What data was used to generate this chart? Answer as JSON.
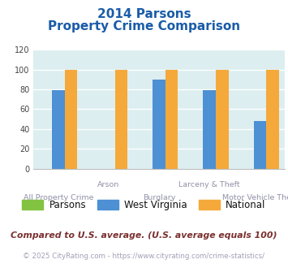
{
  "title_line1": "2014 Parsons",
  "title_line2": "Property Crime Comparison",
  "categories": [
    "All Property Crime",
    "Arson",
    "Burglary",
    "Larceny & Theft",
    "Motor Vehicle Theft"
  ],
  "x_labels_row1": [
    "",
    "Arson",
    "",
    "Larceny & Theft",
    ""
  ],
  "x_labels_row2": [
    "All Property Crime",
    "",
    "Burglary",
    "",
    "Motor Vehicle Theft"
  ],
  "parsons_values": [
    0,
    0,
    0,
    0,
    0
  ],
  "wv_values": [
    79,
    0,
    90,
    79,
    48
  ],
  "national_values": [
    100,
    100,
    100,
    100,
    100
  ],
  "parsons_color": "#82c341",
  "wv_color": "#4d90d4",
  "national_color": "#f5a93a",
  "ylim": [
    0,
    120
  ],
  "yticks": [
    0,
    20,
    40,
    60,
    80,
    100,
    120
  ],
  "bg_color": "#ddeef0",
  "title_color": "#1a5ca8",
  "xlabel_color": "#9090a8",
  "legend_label_parsons": "Parsons",
  "legend_label_wv": "West Virginia",
  "legend_label_national": "National",
  "footnote1": "Compared to U.S. average. (U.S. average equals 100)",
  "footnote2": "© 2025 CityRating.com - https://www.cityrating.com/crime-statistics/",
  "footnote1_color": "#7a3030",
  "footnote2_color": "#a0a0b8",
  "footnote2_link_color": "#4477cc"
}
